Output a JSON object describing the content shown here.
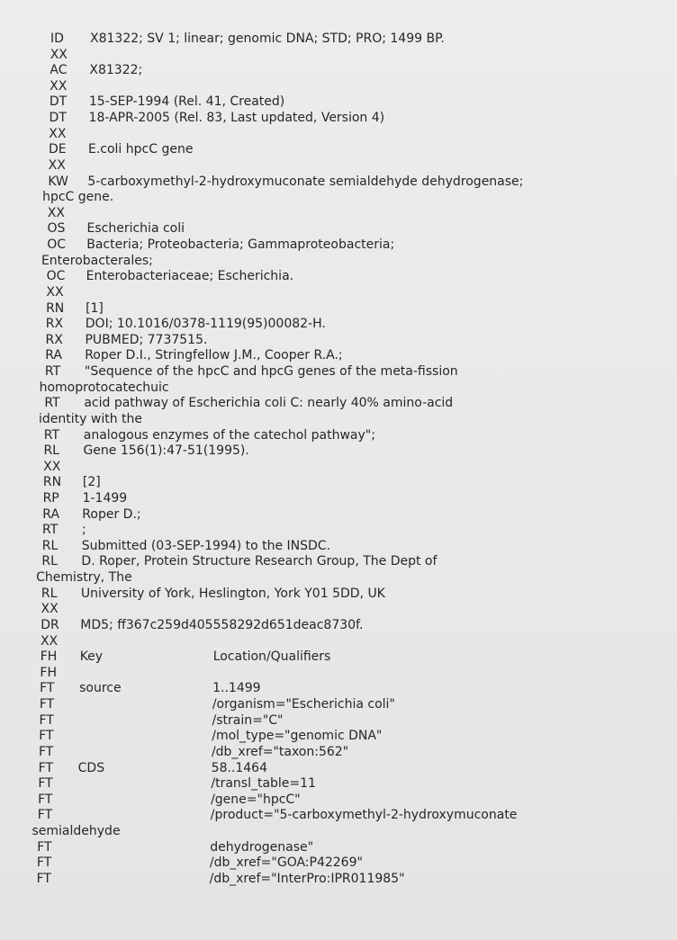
{
  "lines": [
    {
      "code": "ID",
      "text": "X81322; SV 1; linear; genomic DNA; STD; PRO; 1499 BP."
    },
    {
      "code": "XX"
    },
    {
      "code": "AC",
      "text": "X81322;"
    },
    {
      "code": "XX"
    },
    {
      "code": "DT",
      "text": "15-SEP-1994 (Rel. 41, Created)"
    },
    {
      "code": "DT",
      "text": "18-APR-2005 (Rel. 83, Last updated, Version 4)"
    },
    {
      "code": "XX"
    },
    {
      "code": "DE",
      "text": "E.coli hpcC gene"
    },
    {
      "code": "XX"
    },
    {
      "code": "KW",
      "text": "5-carboxymethyl-2-hydroxymuconate semialdehyde dehydrogenase;"
    },
    {
      "cont": "hpcC gene."
    },
    {
      "code": "XX"
    },
    {
      "code": "OS",
      "text": "Escherichia coli"
    },
    {
      "code": "OC",
      "text": "Bacteria; Proteobacteria; Gammaproteobacteria;"
    },
    {
      "cont": "Enterobacterales;"
    },
    {
      "code": "OC",
      "text": "Enterobacteriaceae; Escherichia."
    },
    {
      "code": "XX"
    },
    {
      "code": "RN",
      "text": "[1]"
    },
    {
      "code": "RX",
      "text": "DOI; 10.1016/0378-1119(95)00082-H."
    },
    {
      "code": "RX",
      "text": "PUBMED; 7737515."
    },
    {
      "code": "RA",
      "text": "Roper D.I., Stringfellow J.M., Cooper R.A.;"
    },
    {
      "code": "RT",
      "text": "\"Sequence of the hpcC and hpcG genes of the meta-fission"
    },
    {
      "cont": "homoprotocatechuic"
    },
    {
      "code": "RT",
      "text": "acid pathway of Escherichia coli C: nearly 40% amino-acid"
    },
    {
      "cont": "identity with the"
    },
    {
      "code": "RT",
      "text": "analogous enzymes of the catechol pathway\";"
    },
    {
      "code": "RL",
      "text": "Gene 156(1):47-51(1995)."
    },
    {
      "code": "XX"
    },
    {
      "code": "RN",
      "text": "[2]"
    },
    {
      "code": "RP",
      "text": "1-1499"
    },
    {
      "code": "RA",
      "text": "Roper D.;"
    },
    {
      "code": "RT",
      "text": ";"
    },
    {
      "code": "RL",
      "text": "Submitted (03-SEP-1994) to the INSDC."
    },
    {
      "code": "RL",
      "text": "D. Roper, Protein Structure Research Group, The Dept of"
    },
    {
      "cont": "Chemistry, The"
    },
    {
      "code": "RL",
      "text": "University of York, Heslington, York Y01 5DD, UK"
    },
    {
      "code": "XX"
    },
    {
      "code": "DR",
      "text": "MD5; ff367c259d405558292d651deac8730f."
    },
    {
      "code": "XX"
    },
    {
      "code": "FH",
      "key": "Key",
      "qual": "Location/Qualifiers"
    },
    {
      "code": "FH"
    },
    {
      "code": "FT",
      "key": "source",
      "qual": "1..1499"
    },
    {
      "code": "FT",
      "qual": "/organism=\"Escherichia coli\""
    },
    {
      "code": "FT",
      "qual": "/strain=\"C\""
    },
    {
      "code": "FT",
      "qual": "/mol_type=\"genomic DNA\""
    },
    {
      "code": "FT",
      "qual": "/db_xref=\"taxon:562\""
    },
    {
      "code": "FT",
      "key": "CDS",
      "qual": "58..1464"
    },
    {
      "code": "FT",
      "qual": "/transl_table=11"
    },
    {
      "code": "FT",
      "qual": "/gene=\"hpcC\""
    },
    {
      "code": "FT",
      "qual": "/product=\"5-carboxymethyl-2-hydroxymuconate"
    },
    {
      "cont": "semialdehyde"
    },
    {
      "code": "FT",
      "qual": "dehydrogenase\""
    },
    {
      "code": "FT",
      "qual": "/db_xref=\"GOA:P42269\""
    },
    {
      "code": "FT",
      "qual": "/db_xref=\"InterPro:IPR011985\""
    }
  ]
}
